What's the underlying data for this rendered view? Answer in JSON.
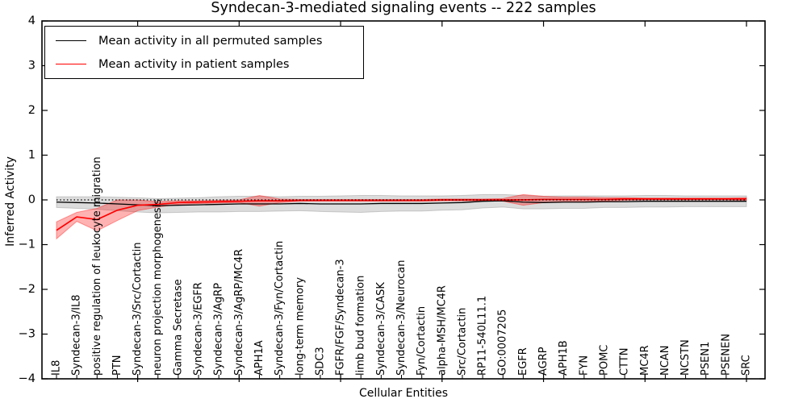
{
  "title": "Syndecan-3-mediated signaling events -- 222 samples",
  "chart_data": {
    "type": "line",
    "title": "Syndecan-3-mediated signaling events -- 222 samples",
    "xlabel": "Cellular Entities",
    "ylabel": "Inferred Activity",
    "ylim": [
      -4,
      4
    ],
    "yticks": [
      -4,
      -3,
      -2,
      -1,
      0,
      1,
      2,
      3,
      4
    ],
    "x_major_tick_indices": [
      4,
      9,
      14,
      19,
      24,
      29,
      34
    ],
    "grid": false,
    "legend_position": "upper-left",
    "zero_line": {
      "y": 0,
      "style": "dotted",
      "color": "#000000"
    },
    "legend": [
      {
        "label": "Mean activity in all permuted samples",
        "color": "#000000"
      },
      {
        "label": "Mean activity in patient samples",
        "color": "#ff0000"
      }
    ],
    "categories": [
      "IL8",
      "Syndecan-3/IL8",
      "positive regulation of leukocyte migration",
      "PTN",
      "Syndecan-3/Src/Cortactin",
      "neuron projection morphogenesis",
      "Gamma Secretase",
      "Syndecan-3/EGFR",
      "Syndecan-3/AgRP",
      "Syndecan-3/AgRP/MC4R",
      "APH1A",
      "Syndecan-3/Fyn/Cortactin",
      "long-term memory",
      "SDC3",
      "FGFR/FGF/Syndecan-3",
      "limb bud formation",
      "Syndecan-3/CASK",
      "Syndecan-3/Neurocan",
      "Fyn/Cortactin",
      "alpha-MSH/MC4R",
      "Src/Cortactin",
      "RP11-540L11.1",
      "GO:0007205",
      "EGFR",
      "AGRP",
      "APH1B",
      "FYN",
      "POMC",
      "CTTN",
      "MC4R",
      "NCAN",
      "NCSTN",
      "PSEN1",
      "PSENEN",
      "SRC"
    ],
    "series": [
      {
        "name": "Mean activity in all permuted samples",
        "color": "#000000",
        "band_color": "#808080",
        "band_opacity": 0.28,
        "values": [
          -0.05,
          -0.06,
          -0.07,
          -0.09,
          -0.11,
          -0.13,
          -0.12,
          -0.11,
          -0.1,
          -0.09,
          -0.09,
          -0.09,
          -0.08,
          -0.09,
          -0.09,
          -0.09,
          -0.08,
          -0.08,
          -0.08,
          -0.07,
          -0.06,
          -0.03,
          -0.02,
          -0.05,
          -0.06,
          -0.05,
          -0.05,
          -0.04,
          -0.04,
          -0.03,
          -0.03,
          -0.03,
          -0.03,
          -0.03,
          -0.03
        ],
        "band_halfwidth": [
          0.12,
          0.13,
          0.14,
          0.15,
          0.16,
          0.16,
          0.16,
          0.16,
          0.17,
          0.17,
          0.17,
          0.16,
          0.16,
          0.17,
          0.18,
          0.19,
          0.18,
          0.17,
          0.17,
          0.16,
          0.16,
          0.15,
          0.14,
          0.15,
          0.14,
          0.14,
          0.14,
          0.13,
          0.13,
          0.13,
          0.13,
          0.12,
          0.12,
          0.12,
          0.12
        ]
      },
      {
        "name": "Mean activity in patient samples",
        "color": "#ff0000",
        "band_color": "#ff0000",
        "band_opacity": 0.3,
        "values": [
          -0.68,
          -0.38,
          -0.44,
          -0.23,
          -0.12,
          -0.1,
          -0.06,
          -0.05,
          -0.04,
          -0.03,
          -0.02,
          -0.02,
          -0.01,
          -0.01,
          -0.01,
          -0.01,
          -0.01,
          -0.01,
          -0.01,
          0.0,
          0.0,
          0.0,
          0.0,
          0.0,
          0.01,
          0.01,
          0.01,
          0.01,
          0.02,
          0.02,
          0.02,
          0.02,
          0.02,
          0.02,
          0.02
        ],
        "band_halfwidth": [
          0.19,
          0.1,
          0.25,
          0.23,
          0.12,
          0.06,
          0.04,
          0.03,
          0.03,
          0.03,
          0.12,
          0.04,
          0.02,
          0.02,
          0.02,
          0.02,
          0.02,
          0.02,
          0.02,
          0.02,
          0.02,
          0.02,
          0.03,
          0.12,
          0.07,
          0.05,
          0.05,
          0.04,
          0.03,
          0.02,
          0.02,
          0.02,
          0.02,
          0.02,
          0.03
        ]
      }
    ]
  }
}
